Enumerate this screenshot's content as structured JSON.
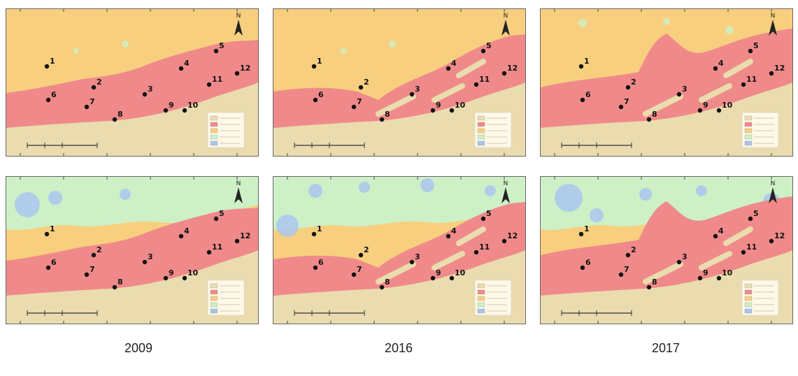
{
  "figure": {
    "year_labels": [
      "2009",
      "2016",
      "2017"
    ]
  },
  "colors": {
    "land": "#eadcae",
    "zone_pink": "#f08a8a",
    "zone_orange": "#f7cf7e",
    "zone_green": "#cdf0c6",
    "zone_blue": "#a8c4f0",
    "station": "#111111"
  },
  "panels": [
    {
      "id": "top-2009",
      "row": "top",
      "year": "2009",
      "stations": [
        "1",
        "2",
        "3",
        "4",
        "5",
        "6",
        "7",
        "8",
        "9",
        "10",
        "11",
        "12"
      ]
    },
    {
      "id": "top-2016",
      "row": "top",
      "year": "2016",
      "stations": [
        "1",
        "2",
        "3",
        "4",
        "5",
        "6",
        "7",
        "8",
        "9",
        "10",
        "11",
        "12"
      ]
    },
    {
      "id": "top-2017",
      "row": "top",
      "year": "2017",
      "stations": [
        "1",
        "2",
        "3",
        "4",
        "5",
        "6",
        "7",
        "8",
        "9",
        "10",
        "11",
        "12"
      ]
    },
    {
      "id": "bottom-2009",
      "row": "bottom",
      "year": "2009",
      "stations": [
        "1",
        "2",
        "3",
        "4",
        "5",
        "6",
        "7",
        "8",
        "9",
        "10",
        "11",
        "12"
      ]
    },
    {
      "id": "bottom-2016",
      "row": "bottom",
      "year": "2016",
      "stations": [
        "1",
        "2",
        "3",
        "4",
        "5",
        "6",
        "7",
        "8",
        "9",
        "10",
        "11",
        "12"
      ]
    },
    {
      "id": "bottom-2017",
      "row": "bottom",
      "year": "2017",
      "stations": [
        "1",
        "2",
        "3",
        "4",
        "5",
        "6",
        "7",
        "8",
        "9",
        "10",
        "11",
        "12"
      ]
    }
  ],
  "north_arrow": "N"
}
